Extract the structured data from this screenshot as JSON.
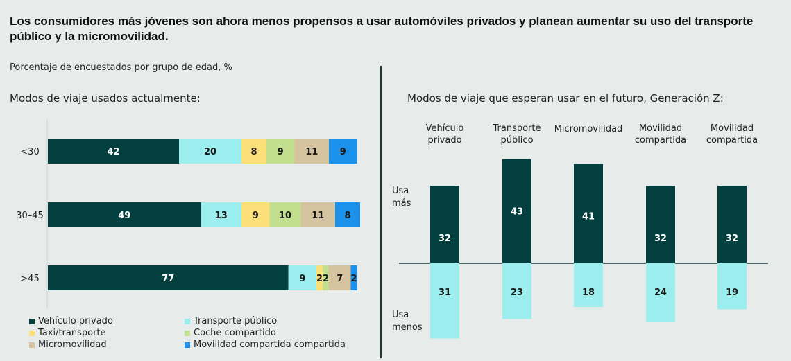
{
  "title": "Los consumidores más jóvenes son ahora menos propensos a usar automóviles privados y planean aumentar su uso del transporte público y la micromovilidad.",
  "subtitle": "Porcentaje de encuestados por grupo de edad, %",
  "colors": {
    "vehiculo": "#033f3f",
    "transporte": "#9ceeee",
    "taxi": "#fbe07a",
    "coche": "#c1df8e",
    "micro": "#d6c3a0",
    "movilidad": "#1b91ec"
  },
  "chart_data": [
    {
      "type": "bar",
      "orientation": "horizontal",
      "stacked": true,
      "title": "Modos de viaje usados actualmente:",
      "categories": [
        "<30",
        "30–45",
        ">45"
      ],
      "series": [
        {
          "name": "Vehículo privado",
          "color_key": "vehiculo",
          "values": [
            42,
            49,
            77
          ]
        },
        {
          "name": "Transporte público",
          "color_key": "transporte",
          "values": [
            20,
            13,
            9
          ]
        },
        {
          "name": "Taxi/transporte",
          "color_key": "taxi",
          "values": [
            8,
            9,
            2
          ]
        },
        {
          "name": "Coche compartido",
          "color_key": "coche",
          "values": [
            9,
            10,
            2
          ]
        },
        {
          "name": "Micromovilidad",
          "color_key": "micro",
          "values": [
            11,
            11,
            7
          ]
        },
        {
          "name": "Movilidad compartida compartida",
          "color_key": "movilidad",
          "values": [
            9,
            8,
            2
          ]
        }
      ]
    },
    {
      "type": "bar",
      "orientation": "vertical",
      "diverging": true,
      "title": "Modos de viaje que esperan usar en el futuro, Generación Z:",
      "categories": [
        "Vehículo privado",
        "Transporte público",
        "Micromovilidad",
        "Movilidad compartida",
        "Movilidad compartida"
      ],
      "category_lines": [
        [
          "Vehículo",
          "privado"
        ],
        [
          "Transporte",
          "público"
        ],
        [
          "Micromovilidad"
        ],
        [
          "Movilidad",
          "compartida"
        ],
        [
          "Movilidad",
          "compartida"
        ]
      ],
      "series": [
        {
          "name": "Usa más",
          "label_lines": [
            "Usa",
            "más"
          ],
          "color_key": "vehiculo",
          "values": [
            32,
            43,
            41,
            32,
            32
          ]
        },
        {
          "name": "Usa menos",
          "label_lines": [
            "Usa",
            "menos"
          ],
          "color_key": "transporte",
          "values": [
            31,
            23,
            18,
            24,
            19
          ]
        }
      ]
    }
  ]
}
